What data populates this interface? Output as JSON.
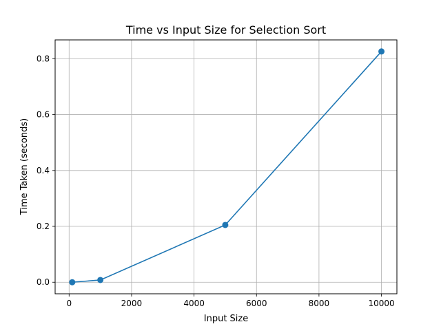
{
  "chart_data": {
    "type": "line",
    "title": "Time vs Input Size for Selection Sort",
    "xlabel": "Input Size",
    "ylabel": "Time Taken (seconds)",
    "x": [
      100,
      1000,
      5000,
      10000
    ],
    "series": [
      {
        "values": [
          0.0001,
          0.008,
          0.205,
          0.826
        ]
      }
    ],
    "xlim": [
      -447.5,
      10495
    ],
    "ylim": [
      -0.0413,
      0.8674
    ],
    "xticks": [
      0,
      2000,
      4000,
      6000,
      8000,
      10000
    ],
    "xtick_labels": [
      "0",
      "2000",
      "4000",
      "6000",
      "8000",
      "10000"
    ],
    "yticks": [
      0.0,
      0.2,
      0.4,
      0.6,
      0.8
    ],
    "ytick_labels": [
      "0.0",
      "0.2",
      "0.4",
      "0.6",
      "0.8"
    ],
    "grid": true,
    "marker": "circle",
    "colors": {
      "line": "#1f77b4",
      "grid": "#b0b0b0",
      "axes": "#000000"
    }
  }
}
